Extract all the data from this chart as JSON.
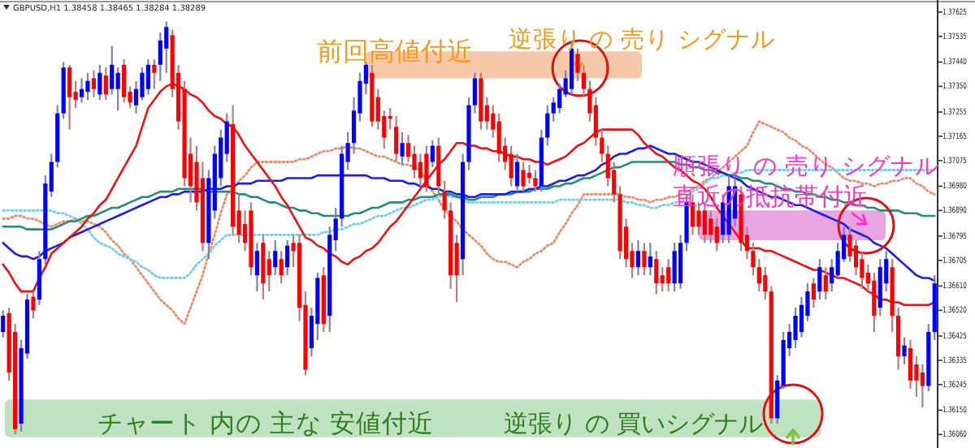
{
  "chart_data": {
    "type": "candlestick",
    "title": "GBPUSD,H1 1.38458 1.38465 1.38284 1.38289",
    "categories": [
      null,
      null,
      null,
      null,
      null,
      null,
      null,
      null,
      null,
      null,
      null,
      null,
      null,
      null,
      null,
      null,
      null,
      null,
      null,
      null,
      null,
      null,
      null,
      null,
      null,
      null,
      null,
      null,
      null,
      null,
      null,
      null,
      null,
      null,
      null,
      null,
      null,
      null,
      null,
      null,
      null,
      null,
      null,
      null,
      null,
      null,
      null,
      null,
      null,
      null,
      null,
      null,
      null,
      null,
      null,
      null,
      null,
      null,
      null,
      null,
      null,
      null,
      null,
      null,
      null,
      null,
      null,
      null,
      null,
      null,
      null,
      null,
      null,
      null,
      null,
      null,
      null,
      null,
      null,
      null,
      null,
      null,
      null,
      null,
      null,
      null,
      null,
      null,
      null,
      null,
      null,
      null,
      null,
      null,
      null,
      null,
      null,
      null,
      null,
      null,
      null,
      null,
      null,
      null,
      null,
      null,
      null,
      null,
      null,
      null,
      null,
      null,
      null,
      null,
      null,
      null,
      null,
      null,
      null,
      null,
      null,
      null,
      null,
      null,
      null,
      null,
      null,
      null,
      null,
      null,
      null,
      null,
      null,
      null,
      null,
      null,
      null,
      null,
      null,
      null,
      null,
      null,
      null,
      null,
      null,
      null,
      null,
      null,
      null,
      null,
      null,
      null,
      null,
      null,
      null
    ],
    "ohlc": [
      [
        1.3644,
        1.3652,
        1.3642,
        1.365
      ],
      [
        1.3651,
        1.3653,
        1.3626,
        1.3629
      ],
      [
        1.3644,
        1.3647,
        1.3606,
        1.3608
      ],
      [
        1.361,
        1.3641,
        1.3607,
        1.3638
      ],
      [
        1.3636,
        1.3658,
        1.3634,
        1.3656
      ],
      [
        1.3657,
        1.3659,
        1.3649,
        1.3652
      ],
      [
        1.3656,
        1.3674,
        1.3654,
        1.3671
      ],
      [
        1.3671,
        1.3702,
        1.3669,
        1.3699
      ],
      [
        1.3696,
        1.371,
        1.3694,
        1.3707
      ],
      [
        1.3707,
        1.3728,
        1.3705,
        1.3725
      ],
      [
        1.3725,
        1.3744,
        1.3723,
        1.3742
      ],
      [
        1.3742,
        1.3743,
        1.3719,
        1.3731
      ],
      [
        1.3733,
        1.3737,
        1.3727,
        1.373
      ],
      [
        1.3731,
        1.3738,
        1.3729,
        1.3734
      ],
      [
        1.3733,
        1.374,
        1.373,
        1.3737
      ],
      [
        1.3738,
        1.3741,
        1.3731,
        1.3734
      ],
      [
        1.3732,
        1.3743,
        1.373,
        1.374
      ],
      [
        1.3739,
        1.3742,
        1.373,
        1.3732
      ],
      [
        1.3734,
        1.375,
        1.3732,
        1.3743
      ],
      [
        1.3734,
        1.3742,
        1.3726,
        1.374
      ],
      [
        1.3743,
        1.3745,
        1.3729,
        1.3731
      ],
      [
        1.3733,
        1.3735,
        1.3727,
        1.3729
      ],
      [
        1.3728,
        1.3737,
        1.3725,
        1.3734
      ],
      [
        1.3731,
        1.3742,
        1.373,
        1.374
      ],
      [
        1.3734,
        1.3745,
        1.3732,
        1.3743
      ],
      [
        1.3743,
        1.3745,
        1.3734,
        1.374
      ],
      [
        1.3743,
        1.3755,
        1.3737,
        1.3752
      ],
      [
        1.3749,
        1.3759,
        1.374,
        1.3757
      ],
      [
        1.3754,
        1.3756,
        1.3731,
        1.3734
      ],
      [
        1.374,
        1.3743,
        1.3719,
        1.3722
      ],
      [
        1.3734,
        1.3737,
        1.3698,
        1.3701
      ],
      [
        1.371,
        1.3716,
        1.3692,
        1.3698
      ],
      [
        1.3707,
        1.3713,
        1.3689,
        1.3692
      ],
      [
        1.3701,
        1.3707,
        1.3674,
        1.3677
      ],
      [
        1.3677,
        1.3704,
        1.3671,
        1.3701
      ],
      [
        1.3689,
        1.3713,
        1.3686,
        1.371
      ],
      [
        1.3701,
        1.3719,
        1.3698,
        1.3716
      ],
      [
        1.371,
        1.3725,
        1.3707,
        1.3722
      ],
      [
        1.3721,
        1.3728,
        1.368,
        1.3683
      ],
      [
        1.3689,
        1.3695,
        1.3677,
        1.368
      ],
      [
        1.3684,
        1.3689,
        1.3674,
        1.3677
      ],
      [
        1.3689,
        1.3692,
        1.3665,
        1.3668
      ],
      [
        1.3665,
        1.3677,
        1.3659,
        1.3674
      ],
      [
        1.3677,
        1.368,
        1.3656,
        1.3662
      ],
      [
        1.3671,
        1.3674,
        1.3659,
        1.3665
      ],
      [
        1.3668,
        1.3678,
        1.3665,
        1.3674
      ],
      [
        1.3671,
        1.3674,
        1.3662,
        1.3665
      ],
      [
        1.3668,
        1.3678,
        1.3665,
        1.3676
      ],
      [
        1.3677,
        1.368,
        1.3668,
        1.3674
      ],
      [
        1.3677,
        1.368,
        1.3648,
        1.3653
      ],
      [
        1.3654,
        1.3659,
        1.3628,
        1.363
      ],
      [
        1.3638,
        1.3653,
        1.3635,
        1.365
      ],
      [
        1.3647,
        1.3666,
        1.3641,
        1.3664
      ],
      [
        1.3665,
        1.3668,
        1.3644,
        1.3647
      ],
      [
        1.365,
        1.3683,
        1.3644,
        1.368
      ],
      [
        1.3678,
        1.369,
        1.3674,
        1.3686
      ],
      [
        1.3686,
        1.3713,
        1.3683,
        1.371
      ],
      [
        1.3707,
        1.3718,
        1.3704,
        1.3714
      ],
      [
        1.3714,
        1.3731,
        1.371,
        1.3726
      ],
      [
        1.3725,
        1.374,
        1.3722,
        1.3737
      ],
      [
        1.3736,
        1.3744,
        1.3732,
        1.3743
      ],
      [
        1.374,
        1.3743,
        1.372,
        1.3722
      ],
      [
        1.3731,
        1.3734,
        1.3719,
        1.3722
      ],
      [
        1.3724,
        1.3726,
        1.3712,
        1.3716
      ],
      [
        1.3724,
        1.3727,
        1.3719,
        1.3723
      ],
      [
        1.372,
        1.3724,
        1.3707,
        1.371
      ],
      [
        1.3709,
        1.3718,
        1.3706,
        1.3714
      ],
      [
        1.3714,
        1.3717,
        1.3707,
        1.3709
      ],
      [
        1.371,
        1.3713,
        1.3701,
        1.3704
      ],
      [
        1.3707,
        1.371,
        1.3698,
        1.3701
      ],
      [
        1.371,
        1.3713,
        1.3696,
        1.3698
      ],
      [
        1.3707,
        1.3715,
        1.3705,
        1.3713
      ],
      [
        1.3713,
        1.3716,
        1.3695,
        1.3698
      ],
      [
        1.3696,
        1.37,
        1.3686,
        1.3689
      ],
      [
        1.3689,
        1.3692,
        1.366,
        1.3665
      ],
      [
        1.3677,
        1.368,
        1.3655,
        1.3665
      ],
      [
        1.3671,
        1.371,
        1.3665,
        1.3707
      ],
      [
        1.3707,
        1.3731,
        1.3704,
        1.3728
      ],
      [
        1.3728,
        1.374,
        1.3725,
        1.3738
      ],
      [
        1.3738,
        1.374,
        1.3719,
        1.3722
      ],
      [
        1.3728,
        1.3731,
        1.3719,
        1.3722
      ],
      [
        1.3725,
        1.3728,
        1.3716,
        1.3719
      ],
      [
        1.3722,
        1.3725,
        1.3707,
        1.371
      ],
      [
        1.3713,
        1.3716,
        1.3704,
        1.3707
      ],
      [
        1.371,
        1.3713,
        1.3698,
        1.3701
      ],
      [
        1.3698,
        1.371,
        1.3696,
        1.3707
      ],
      [
        1.3704,
        1.3707,
        1.3696,
        1.3698
      ],
      [
        1.3703,
        1.3706,
        1.3699,
        1.3701
      ],
      [
        1.3701,
        1.3704,
        1.3696,
        1.3698
      ],
      [
        1.3698,
        1.3719,
        1.3696,
        1.3716
      ],
      [
        1.3716,
        1.3728,
        1.3713,
        1.3725
      ],
      [
        1.3725,
        1.3731,
        1.3722,
        1.3729
      ],
      [
        1.3727,
        1.3736,
        1.3725,
        1.3734
      ],
      [
        1.3732,
        1.3741,
        1.3731,
        1.3738
      ],
      [
        1.3734,
        1.3752,
        1.3732,
        1.3749
      ],
      [
        1.3747,
        1.3749,
        1.3737,
        1.374
      ],
      [
        1.374,
        1.3743,
        1.3731,
        1.3734
      ],
      [
        1.3734,
        1.3737,
        1.3722,
        1.3725
      ],
      [
        1.3728,
        1.3731,
        1.3713,
        1.3716
      ],
      [
        1.3716,
        1.3719,
        1.3707,
        1.371
      ],
      [
        1.371,
        1.3713,
        1.3698,
        1.3701
      ],
      [
        1.3704,
        1.3707,
        1.3692,
        1.3695
      ],
      [
        1.3695,
        1.3698,
        1.3671,
        1.3674
      ],
      [
        1.3683,
        1.3686,
        1.3668,
        1.3671
      ],
      [
        1.3674,
        1.3677,
        1.3664,
        1.3668
      ],
      [
        1.3668,
        1.3678,
        1.3665,
        1.3674
      ],
      [
        1.3674,
        1.3677,
        1.3665,
        1.3668
      ],
      [
        1.3668,
        1.3677,
        1.3665,
        1.3672
      ],
      [
        1.3671,
        1.3674,
        1.3658,
        1.3662
      ],
      [
        1.3665,
        1.3668,
        1.3659,
        1.3662
      ],
      [
        1.3668,
        1.3671,
        1.3659,
        1.3662
      ],
      [
        1.3662,
        1.3677,
        1.3659,
        1.3674
      ],
      [
        1.3662,
        1.368,
        1.366,
        1.3677
      ],
      [
        1.3677,
        1.3695,
        1.3674,
        1.3692
      ],
      [
        1.3692,
        1.3695,
        1.368,
        1.3683
      ],
      [
        1.3689,
        1.3692,
        1.368,
        1.3683
      ],
      [
        1.3689,
        1.3692,
        1.3677,
        1.368
      ],
      [
        1.3686,
        1.3689,
        1.3677,
        1.368
      ],
      [
        1.3683,
        1.3686,
        1.3674,
        1.3677
      ],
      [
        1.368,
        1.3695,
        1.3677,
        1.3692
      ],
      [
        1.368,
        1.3702,
        1.3677,
        1.3698
      ],
      [
        1.3686,
        1.3701,
        1.3683,
        1.3698
      ],
      [
        1.3695,
        1.3698,
        1.3674,
        1.3677
      ],
      [
        1.368,
        1.3683,
        1.3671,
        1.3674
      ],
      [
        1.3674,
        1.3677,
        1.3665,
        1.3668
      ],
      [
        1.3668,
        1.3671,
        1.3659,
        1.3662
      ],
      [
        1.3665,
        1.3668,
        1.3656,
        1.3659
      ],
      [
        1.3659,
        1.3661,
        1.361,
        1.3612
      ],
      [
        1.3612,
        1.3628,
        1.361,
        1.3626
      ],
      [
        1.3624,
        1.3644,
        1.3623,
        1.3641
      ],
      [
        1.3638,
        1.3647,
        1.3635,
        1.3644
      ],
      [
        1.3641,
        1.3653,
        1.3638,
        1.365
      ],
      [
        1.3644,
        1.3657,
        1.3642,
        1.3654
      ],
      [
        1.365,
        1.3662,
        1.3648,
        1.3659
      ],
      [
        1.3662,
        1.3664,
        1.3653,
        1.3656
      ],
      [
        1.3659,
        1.3671,
        1.3656,
        1.3668
      ],
      [
        1.3665,
        1.3668,
        1.3656,
        1.3659
      ],
      [
        1.3662,
        1.3671,
        1.3659,
        1.3668
      ],
      [
        1.3665,
        1.3677,
        1.3664,
        1.3674
      ],
      [
        1.3671,
        1.3683,
        1.367,
        1.368
      ],
      [
        1.368,
        1.3683,
        1.367,
        1.3672
      ],
      [
        1.3676,
        1.3678,
        1.3665,
        1.3668
      ],
      [
        1.3671,
        1.3674,
        1.366,
        1.3664
      ],
      [
        1.3666,
        1.3669,
        1.3659,
        1.3662
      ],
      [
        1.3663,
        1.3666,
        1.3644,
        1.365
      ],
      [
        1.3653,
        1.3671,
        1.365,
        1.3668
      ],
      [
        1.3662,
        1.3674,
        1.3659,
        1.3671
      ],
      [
        1.3668,
        1.3671,
        1.3644,
        1.365
      ],
      [
        1.365,
        1.3653,
        1.363,
        1.3635
      ],
      [
        1.3635,
        1.3642,
        1.3632,
        1.3639
      ],
      [
        1.3638,
        1.3641,
        1.3623,
        1.3626
      ],
      [
        1.3632,
        1.3635,
        1.362,
        1.3626
      ],
      [
        1.3629,
        1.3632,
        1.3616,
        1.3624
      ],
      [
        1.3624,
        1.3647,
        1.3622,
        1.3644
      ],
      [
        1.3644,
        1.3665,
        1.3641,
        1.3662
      ]
    ],
    "colors": [
      "#0000ff",
      "#ff0000",
      "#ff0000",
      "#0000ff",
      "#0000ff",
      "#ff0000",
      "#0000ff",
      "#0000ff",
      "#0000ff",
      "#0000ff",
      "#0000ff",
      "#ff0000",
      "#ff0000",
      "#0000ff",
      "#0000ff",
      "#ff0000",
      "#0000ff",
      "#ff0000",
      "#0000ff",
      "#0000ff",
      "#ff0000",
      "#ff0000",
      "#0000ff",
      "#0000ff",
      "#0000ff",
      "#ff0000",
      "#0000ff",
      "#0000ff",
      "#ff0000",
      "#ff0000",
      "#ff0000",
      "#ff0000",
      "#ff0000",
      "#ff0000",
      "#0000ff",
      "#0000ff",
      "#0000ff",
      "#0000ff",
      "#ff0000",
      "#ff0000",
      "#ff0000",
      "#ff0000",
      "#0000ff",
      "#ff0000",
      "#ff0000",
      "#0000ff",
      "#ff0000",
      "#0000ff",
      "#ff0000",
      "#ff0000",
      "#ff0000",
      "#0000ff",
      "#0000ff",
      "#ff0000",
      "#0000ff",
      "#0000ff",
      "#0000ff",
      "#0000ff",
      "#0000ff",
      "#0000ff",
      "#0000ff",
      "#ff0000",
      "#ff0000",
      "#ff0000",
      "#ff0000",
      "#ff0000",
      "#0000ff",
      "#ff0000",
      "#ff0000",
      "#ff0000",
      "#ff0000",
      "#0000ff",
      "#ff0000",
      "#ff0000",
      "#ff0000",
      "#ff0000",
      "#0000ff",
      "#0000ff",
      "#0000ff",
      "#ff0000",
      "#ff0000",
      "#ff0000",
      "#ff0000",
      "#ff0000",
      "#ff0000",
      "#0000ff",
      "#ff0000",
      "#ff0000",
      "#ff0000",
      "#0000ff",
      "#0000ff",
      "#0000ff",
      "#0000ff",
      "#0000ff",
      "#0000ff",
      "#ff0000",
      "#ff0000",
      "#ff0000",
      "#ff0000",
      "#ff0000",
      "#ff0000",
      "#ff0000",
      "#ff0000",
      "#ff0000",
      "#ff0000",
      "#0000ff",
      "#ff0000",
      "#0000ff",
      "#ff0000",
      "#ff0000",
      "#ff0000",
      "#0000ff",
      "#0000ff",
      "#0000ff",
      "#ff0000",
      "#ff0000",
      "#ff0000",
      "#ff0000",
      "#ff0000",
      "#0000ff",
      "#0000ff",
      "#0000ff",
      "#ff0000",
      "#ff0000",
      "#ff0000",
      "#ff0000",
      "#ff0000",
      "#ff0000",
      "#0000ff",
      "#0000ff",
      "#0000ff",
      "#0000ff",
      "#0000ff",
      "#0000ff",
      "#ff0000",
      "#0000ff",
      "#ff0000",
      "#0000ff",
      "#0000ff",
      "#0000ff",
      "#ff0000",
      "#ff0000",
      "#ff0000",
      "#ff0000",
      "#ff0000",
      "#0000ff",
      "#0000ff",
      "#ff0000",
      "#ff0000",
      "#0000ff",
      "#ff0000",
      "#ff0000",
      "#ff0000",
      "#0000ff",
      "#0000ff"
    ],
    "series": [
      {
        "type": "line",
        "color": "#f08c6c",
        "line_style": "dotted",
        "values": [
          1.3686,
          1.3686,
          1.3687,
          1.3687,
          1.3686,
          1.3686,
          1.3685,
          1.3684,
          1.3683,
          1.3684,
          1.3685,
          1.3685,
          1.3686,
          1.3685,
          1.3685,
          1.3684,
          1.3683,
          1.3681,
          1.3678,
          1.3676,
          1.3673,
          1.3671,
          1.3668,
          1.3665,
          1.3662,
          1.3659,
          1.3656,
          1.3654,
          1.3652,
          1.3649,
          1.3647,
          1.3653,
          1.3659,
          1.3665,
          1.3673,
          1.368,
          1.3688,
          1.3695,
          1.3697,
          1.37,
          1.3702,
          1.3705,
          1.3707,
          1.3707,
          1.3707,
          1.3707,
          1.3707,
          1.3707,
          1.3707,
          1.3708,
          1.3708,
          1.3709,
          1.371,
          1.3711,
          1.3711,
          1.3712,
          1.3712,
          1.3713,
          1.3712,
          1.3712,
          1.3711,
          1.371,
          1.3709,
          1.3709,
          1.3708,
          1.3707,
          1.3706,
          1.3706,
          1.3705,
          1.3704,
          1.37,
          1.3696,
          1.3693,
          1.3689,
          1.3687,
          1.3685,
          1.3682,
          1.368,
          1.3678,
          1.3676,
          1.3673,
          1.3671,
          1.367,
          1.367,
          1.3669,
          1.3668,
          1.367,
          1.3671,
          1.3673,
          1.3674,
          1.3676,
          1.3677,
          1.3681,
          1.3684,
          1.3688,
          1.3691,
          1.3695,
          1.3695,
          1.3695,
          1.3695,
          1.3695,
          1.3695,
          1.3695,
          1.3694,
          1.3694,
          1.3693,
          1.3693,
          1.3692,
          1.3693,
          1.3693,
          1.3694,
          1.3694,
          1.3695,
          1.3696,
          1.3697,
          1.3698,
          1.37,
          1.3701,
          1.3703,
          1.3705,
          1.3707,
          1.3709,
          1.3711,
          1.3713,
          1.3718,
          1.3722,
          1.3721,
          1.372,
          1.3719,
          1.3718,
          1.3716,
          1.3715,
          1.3713,
          1.3712,
          1.371,
          1.3708,
          1.3706,
          1.3705,
          1.3703,
          1.3701,
          1.37,
          1.37,
          1.3699,
          1.3699,
          1.3698,
          1.3699,
          1.3699,
          1.37,
          1.37,
          1.3701,
          1.3701,
          1.3699,
          1.3698,
          1.3696,
          1.3695
        ]
      },
      {
        "type": "line",
        "color": "#6fcfee",
        "line_style": "dotted",
        "values": [
          1.3689,
          1.3689,
          1.3689,
          1.3689,
          1.3689,
          1.3689,
          1.3689,
          1.3689,
          1.3689,
          1.3688,
          1.3688,
          1.3687,
          1.3686,
          1.3684,
          1.3682,
          1.3679,
          1.3677,
          1.3676,
          1.3675,
          1.3673,
          1.3672,
          1.3671,
          1.367,
          1.3668,
          1.3667,
          1.3665,
          1.3664,
          1.3664,
          1.3664,
          1.3664,
          1.3664,
          1.3666,
          1.3669,
          1.3671,
          1.3673,
          1.3676,
          1.3678,
          1.368,
          1.368,
          1.368,
          1.368,
          1.368,
          1.368,
          1.368,
          1.368,
          1.368,
          1.368,
          1.368,
          1.368,
          1.368,
          1.368,
          1.368,
          1.368,
          1.3681,
          1.3681,
          1.3682,
          1.3682,
          1.3683,
          1.3684,
          1.3684,
          1.3685,
          1.3686,
          1.3687,
          1.3687,
          1.3688,
          1.3689,
          1.369,
          1.369,
          1.3691,
          1.3692,
          1.3693,
          1.3693,
          1.3694,
          1.3695,
          1.3694,
          1.3694,
          1.3693,
          1.3692,
          1.3692,
          1.3692,
          1.3692,
          1.3692,
          1.3692,
          1.3692,
          1.3692,
          1.3692,
          1.3692,
          1.3692,
          1.3692,
          1.3692,
          1.3692,
          1.3692,
          1.3693,
          1.3693,
          1.3693,
          1.3693,
          1.3693,
          1.3693,
          1.3693,
          1.3693,
          1.3693,
          1.3693,
          1.3693,
          1.3692,
          1.3692,
          1.3691,
          1.3691,
          1.369,
          1.369,
          1.3691,
          1.3691,
          1.3692,
          1.3692,
          1.3694,
          1.3696,
          1.3697,
          1.3699,
          1.3701,
          1.3701,
          1.3702,
          1.3702,
          1.3703,
          1.3703,
          1.3704,
          1.3704,
          1.3704,
          1.3704,
          1.3704,
          1.3704,
          1.3704,
          1.3704,
          1.3704,
          1.3704,
          1.3704,
          1.3704,
          1.3704,
          1.3704,
          1.3704,
          1.3704,
          1.3704,
          1.3704,
          1.3704,
          1.3704,
          1.3704,
          1.3704,
          1.3704,
          1.3704,
          1.3704,
          1.3704,
          1.3704,
          1.3704,
          1.3704,
          1.3704,
          1.3704,
          1.3704
        ]
      },
      {
        "type": "line",
        "color": "#1f8f7a",
        "line_style": "solid",
        "values": [
          1.3683,
          1.3683,
          1.3683,
          1.3683,
          1.3682,
          1.3682,
          1.3682,
          1.3682,
          1.3682,
          1.3683,
          1.3684,
          1.3685,
          1.3685,
          1.3686,
          1.3687,
          1.3687,
          1.3688,
          1.3689,
          1.369,
          1.369,
          1.3691,
          1.3692,
          1.3693,
          1.3694,
          1.3694,
          1.3695,
          1.3696,
          1.3696,
          1.3696,
          1.3697,
          1.3697,
          1.3697,
          1.3697,
          1.3697,
          1.3696,
          1.3696,
          1.3696,
          1.3696,
          1.3696,
          1.3695,
          1.3695,
          1.3694,
          1.3694,
          1.3693,
          1.3692,
          1.3692,
          1.3691,
          1.369,
          1.369,
          1.3689,
          1.3689,
          1.3688,
          1.3688,
          1.3687,
          1.3687,
          1.3687,
          1.3687,
          1.3687,
          1.3688,
          1.3688,
          1.3689,
          1.369,
          1.369,
          1.3691,
          1.3692,
          1.3692,
          1.3692,
          1.3693,
          1.3693,
          1.3694,
          1.3694,
          1.3694,
          1.3695,
          1.3695,
          1.3695,
          1.3694,
          1.3694,
          1.3693,
          1.3693,
          1.3694,
          1.3694,
          1.3694,
          1.3695,
          1.3695,
          1.3695,
          1.3696,
          1.3696,
          1.3696,
          1.3697,
          1.3697,
          1.3697,
          1.3698,
          1.3698,
          1.3699,
          1.3699,
          1.37,
          1.3701,
          1.3701,
          1.3702,
          1.3703,
          1.3704,
          1.3705,
          1.3705,
          1.3706,
          1.3707,
          1.3707,
          1.3707,
          1.3707,
          1.3707,
          1.3707,
          1.3707,
          1.3707,
          1.3706,
          1.3706,
          1.3705,
          1.3705,
          1.3704,
          1.3704,
          1.3703,
          1.3703,
          1.3702,
          1.3702,
          1.3701,
          1.3701,
          1.37,
          1.37,
          1.3699,
          1.3699,
          1.3698,
          1.3697,
          1.3697,
          1.3696,
          1.3696,
          1.3695,
          1.3695,
          1.3694,
          1.3694,
          1.3693,
          1.3693,
          1.3692,
          1.3692,
          1.3691,
          1.3691,
          1.369,
          1.369,
          1.3689,
          1.3689,
          1.3689,
          1.3689,
          1.3688,
          1.3688,
          1.3688,
          1.3687,
          1.3687,
          1.3687
        ]
      },
      {
        "type": "line",
        "color": "#1c1cf0",
        "line_style": "solid",
        "values": [
          1.3677,
          1.3675,
          1.3673,
          1.3672,
          1.3672,
          1.3671,
          1.3672,
          1.3674,
          1.3675,
          1.3676,
          1.3677,
          1.3679,
          1.368,
          1.3681,
          1.3682,
          1.3683,
          1.3684,
          1.3685,
          1.3686,
          1.3687,
          1.3688,
          1.3689,
          1.369,
          1.3691,
          1.3692,
          1.3693,
          1.3694,
          1.3694,
          1.3695,
          1.3695,
          1.3696,
          1.3696,
          1.3696,
          1.3696,
          1.3697,
          1.3697,
          1.3697,
          1.3698,
          1.3698,
          1.3699,
          1.3699,
          1.3699,
          1.37,
          1.37,
          1.37,
          1.37,
          1.37,
          1.3701,
          1.3701,
          1.3701,
          1.3701,
          1.3701,
          1.3702,
          1.3702,
          1.3702,
          1.3702,
          1.3702,
          1.3702,
          1.3702,
          1.3702,
          1.3702,
          1.3701,
          1.3701,
          1.3701,
          1.37,
          1.37,
          1.37,
          1.3699,
          1.3699,
          1.3698,
          1.3698,
          1.3697,
          1.3697,
          1.3696,
          1.3696,
          1.3695,
          1.3695,
          1.3694,
          1.3694,
          1.3695,
          1.3695,
          1.3695,
          1.3695,
          1.3695,
          1.3696,
          1.3696,
          1.3696,
          1.3697,
          1.3697,
          1.3698,
          1.3698,
          1.3699,
          1.37,
          1.37,
          1.3701,
          1.3702,
          1.3702,
          1.3703,
          1.3704,
          1.3706,
          1.3707,
          1.3709,
          1.371,
          1.371,
          1.3711,
          1.3712,
          1.3712,
          1.3713,
          1.3712,
          1.3711,
          1.371,
          1.371,
          1.3709,
          1.3708,
          1.3707,
          1.3707,
          1.3706,
          1.3705,
          1.3704,
          1.3703,
          1.3702,
          1.3701,
          1.37,
          1.3698,
          1.3697,
          1.3696,
          1.3695,
          1.3694,
          1.3694,
          1.3693,
          1.3692,
          1.3691,
          1.3691,
          1.369,
          1.3689,
          1.3688,
          1.3687,
          1.3686,
          1.3685,
          1.3684,
          1.3682,
          1.3681,
          1.368,
          1.3679,
          1.3677,
          1.3676,
          1.3675,
          1.3673,
          1.3671,
          1.3669,
          1.3667,
          1.3665,
          1.3664,
          1.3664,
          1.3663
        ]
      },
      {
        "type": "line",
        "color": "#ee1111",
        "line_style": "solid",
        "values": [
          1.3669,
          1.3666,
          1.3662,
          1.3659,
          1.3659,
          1.3659,
          1.3664,
          1.3668,
          1.3673,
          1.3675,
          1.3677,
          1.3679,
          1.3681,
          1.3683,
          1.3686,
          1.3688,
          1.3691,
          1.3693,
          1.3697,
          1.3701,
          1.3705,
          1.3709,
          1.3713,
          1.372,
          1.3727,
          1.373,
          1.3733,
          1.3735,
          1.3736,
          1.3735,
          1.3734,
          1.3732,
          1.3731,
          1.3729,
          1.3726,
          1.3724,
          1.3723,
          1.3721,
          1.372,
          1.3717,
          1.3713,
          1.371,
          1.3707,
          1.3704,
          1.3701,
          1.3698,
          1.3694,
          1.3691,
          1.3687,
          1.3683,
          1.3679,
          1.3678,
          1.3676,
          1.3675,
          1.3673,
          1.3672,
          1.367,
          1.3669,
          1.3671,
          1.3672,
          1.3674,
          1.3675,
          1.3677,
          1.368,
          1.3683,
          1.3685,
          1.3688,
          1.3691,
          1.3694,
          1.3697,
          1.37,
          1.3703,
          1.3706,
          1.3708,
          1.3711,
          1.3714,
          1.3714,
          1.3713,
          1.3713,
          1.3712,
          1.3712,
          1.3711,
          1.3711,
          1.371,
          1.3709,
          1.3709,
          1.3708,
          1.3708,
          1.3707,
          1.3707,
          1.3706,
          1.3707,
          1.3708,
          1.3709,
          1.3711,
          1.3713,
          1.3714,
          1.3716,
          1.3718,
          1.3719,
          1.3719,
          1.3719,
          1.3719,
          1.3719,
          1.3719,
          1.3717,
          1.3714,
          1.3712,
          1.371,
          1.3709,
          1.3707,
          1.3705,
          1.3704,
          1.3702,
          1.37,
          1.3699,
          1.3697,
          1.3694,
          1.369,
          1.3687,
          1.3684,
          1.3681,
          1.3678,
          1.3675,
          1.3675,
          1.3675,
          1.3674,
          1.3674,
          1.3673,
          1.3672,
          1.3671,
          1.367,
          1.3669,
          1.3668,
          1.3667,
          1.3667,
          1.3666,
          1.3665,
          1.3664,
          1.3664,
          1.3663,
          1.3662,
          1.3661,
          1.3659,
          1.3658,
          1.3656,
          1.3656,
          1.3655,
          1.3655,
          1.3654,
          1.3654,
          1.3654,
          1.3654,
          1.3654,
          1.3655
        ]
      }
    ],
    "ylim": [
      1.3601,
      1.3767
    ],
    "yticks": [
      {
        "value": 1.37625,
        "label": "1.37625"
      },
      {
        "value": 1.37535,
        "label": "1.37535"
      },
      {
        "value": 1.3744,
        "label": "1.37440"
      },
      {
        "value": 1.3735,
        "label": "1.37350"
      },
      {
        "value": 1.37255,
        "label": "1.37255"
      },
      {
        "value": 1.37165,
        "label": "1.37165"
      },
      {
        "value": 1.37075,
        "label": "1.37075"
      },
      {
        "value": 1.3698,
        "label": "1.36980"
      },
      {
        "value": 1.3689,
        "label": "1.36890"
      },
      {
        "value": 1.36795,
        "label": "1.36795"
      },
      {
        "value": 1.36705,
        "label": "1.36705"
      },
      {
        "value": 1.3661,
        "label": "1.36610"
      },
      {
        "value": 1.3652,
        "label": "1.36520"
      },
      {
        "value": 1.36425,
        "label": "1.36425"
      },
      {
        "value": 1.36335,
        "label": "1.36335"
      },
      {
        "value": 1.36245,
        "label": "1.36245"
      },
      {
        "value": 1.3615,
        "label": "1.36150"
      },
      {
        "value": 1.3606,
        "label": "1.36060"
      }
    ],
    "tick_labels": "y",
    "bands": [
      {
        "axis": "y",
        "from": 1.3738,
        "to": 1.3748,
        "color": "#f7c9a8"
      },
      {
        "axis": "y",
        "from": 1.3678,
        "to": 1.3689,
        "color": "#e9a5e2"
      },
      {
        "axis": "y",
        "from": 1.3605,
        "to": 1.3619,
        "color": "#bfe3c1"
      }
    ],
    "annotations": [
      "前回高値付近",
      "逆張り の 売り シグナル",
      "順張り の 売り シグナル",
      "直近の抵抗帯付近",
      "チャート 内の 主な 安値付近",
      "逆張り の 買いシグナル"
    ]
  }
}
